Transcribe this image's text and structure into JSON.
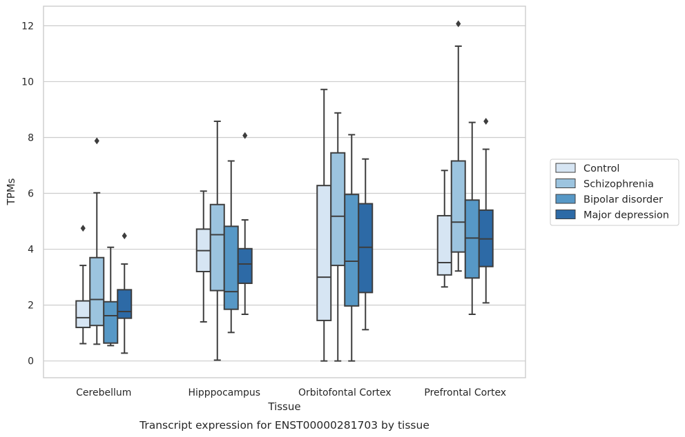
{
  "caption": "Transcript expression for ENST00000281703 by tissue",
  "chart_data": {
    "type": "box",
    "xlabel": "Tissue",
    "ylabel": "TPMs",
    "ylim": [
      -0.6,
      12.7
    ],
    "yticks": [
      0,
      2,
      4,
      6,
      8,
      10,
      12
    ],
    "grid": "horizontal",
    "legend_position": "right",
    "categories": [
      "Cerebellum",
      "Hipppocampus",
      "Orbitofontal Cortex",
      "Prefrontal Cortex"
    ],
    "series": [
      {
        "name": "Control",
        "color": "#d6e5f3",
        "boxes": [
          {
            "whislo": 0.62,
            "q1": 1.2,
            "med": 1.55,
            "q3": 2.15,
            "whishi": 3.42,
            "fliers": [
              4.75
            ]
          },
          {
            "whislo": 1.4,
            "q1": 3.2,
            "med": 3.95,
            "q3": 4.72,
            "whishi": 6.08,
            "fliers": []
          },
          {
            "whislo": 0.0,
            "q1": 1.45,
            "med": 3.0,
            "q3": 6.28,
            "whishi": 9.72,
            "fliers": []
          },
          {
            "whislo": 2.65,
            "q1": 3.08,
            "med": 3.52,
            "q3": 5.2,
            "whishi": 6.82,
            "fliers": []
          }
        ]
      },
      {
        "name": "Schizophrenia",
        "color": "#9cc4df",
        "boxes": [
          {
            "whislo": 0.6,
            "q1": 1.27,
            "med": 2.2,
            "q3": 3.7,
            "whishi": 6.02,
            "fliers": [
              7.88
            ]
          },
          {
            "whislo": 0.03,
            "q1": 2.52,
            "med": 4.52,
            "q3": 5.6,
            "whishi": 8.58,
            "fliers": []
          },
          {
            "whislo": 0.0,
            "q1": 3.42,
            "med": 5.18,
            "q3": 7.45,
            "whishi": 8.88,
            "fliers": []
          },
          {
            "whislo": 3.22,
            "q1": 3.9,
            "med": 4.97,
            "q3": 7.16,
            "whishi": 11.27,
            "fliers": [
              12.07
            ]
          }
        ]
      },
      {
        "name": "Bipolar disorder",
        "color": "#5798c6",
        "boxes": [
          {
            "whislo": 0.55,
            "q1": 0.64,
            "med": 1.62,
            "q3": 2.12,
            "whishi": 4.07,
            "fliers": []
          },
          {
            "whislo": 1.02,
            "q1": 1.85,
            "med": 2.48,
            "q3": 4.82,
            "whishi": 7.16,
            "fliers": []
          },
          {
            "whislo": 0.0,
            "q1": 1.97,
            "med": 3.57,
            "q3": 5.96,
            "whishi": 8.1,
            "fliers": []
          },
          {
            "whislo": 1.67,
            "q1": 2.97,
            "med": 4.4,
            "q3": 5.76,
            "whishi": 8.54,
            "fliers": []
          }
        ]
      },
      {
        "name": "Major depression",
        "color": "#2d6aa6",
        "boxes": [
          {
            "whislo": 0.28,
            "q1": 1.53,
            "med": 1.77,
            "q3": 2.55,
            "whishi": 3.47,
            "fliers": [
              4.48
            ]
          },
          {
            "whislo": 1.67,
            "q1": 2.78,
            "med": 3.47,
            "q3": 4.02,
            "whishi": 5.05,
            "fliers": [
              8.07
            ]
          },
          {
            "whislo": 1.12,
            "q1": 2.45,
            "med": 4.07,
            "q3": 5.63,
            "whishi": 7.23,
            "fliers": []
          },
          {
            "whislo": 2.08,
            "q1": 3.38,
            "med": 4.37,
            "q3": 5.4,
            "whishi": 7.58,
            "fliers": [
              8.58
            ]
          }
        ]
      }
    ]
  }
}
